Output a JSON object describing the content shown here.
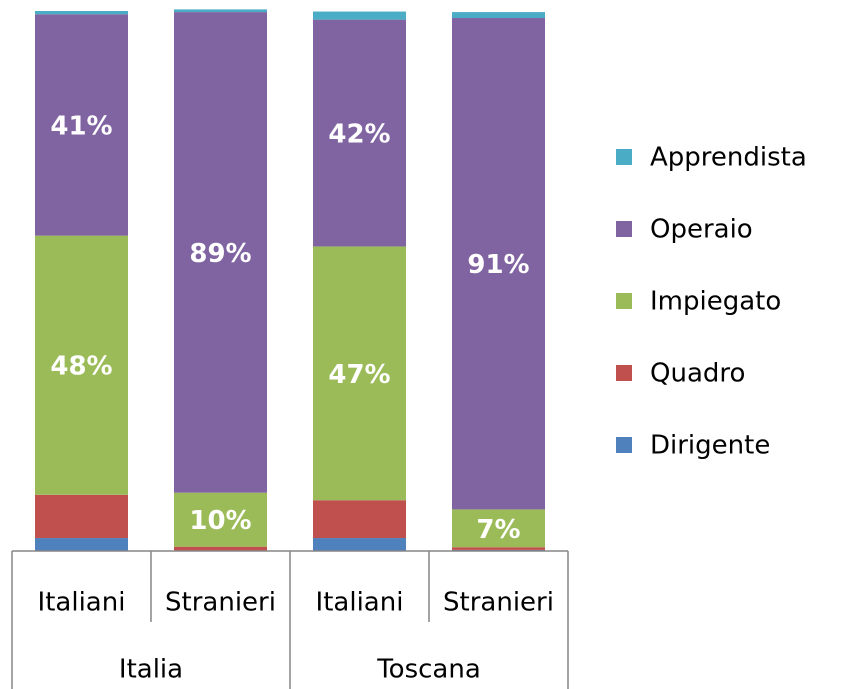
{
  "chart_data": {
    "type": "stacked_bar",
    "categories": [
      "Italiani",
      "Stranieri",
      "Italiani",
      "Stranieri"
    ],
    "category_groups": [
      "Italia",
      "Toscana"
    ],
    "ylim": [
      0,
      100
    ],
    "legend": "right",
    "series": [
      {
        "name": "Dirigente",
        "color": "#4f81bd",
        "values": [
          2.4,
          0.1,
          2.4,
          0.2
        ],
        "value_labels": [
          null,
          null,
          null,
          null
        ]
      },
      {
        "name": "Quadro",
        "color": "#c0504d",
        "values": [
          8,
          0.7,
          7,
          0.5
        ],
        "value_labels": [
          null,
          null,
          null,
          null
        ]
      },
      {
        "name": "Impiegato",
        "color": "#9bbb59",
        "values": [
          48,
          10,
          47,
          7
        ],
        "value_labels": [
          "48%",
          "10%",
          "47%",
          "7%"
        ]
      },
      {
        "name": "Operaio",
        "color": "#8064a2",
        "values": [
          41,
          89,
          42,
          91
        ],
        "value_labels": [
          "41%",
          "89%",
          "42%",
          "91%"
        ]
      },
      {
        "name": "Apprendista",
        "color": "#4bacc6",
        "values": [
          0.6,
          0.5,
          1.5,
          1.1
        ],
        "value_labels": [
          null,
          null,
          null,
          null
        ]
      }
    ]
  }
}
